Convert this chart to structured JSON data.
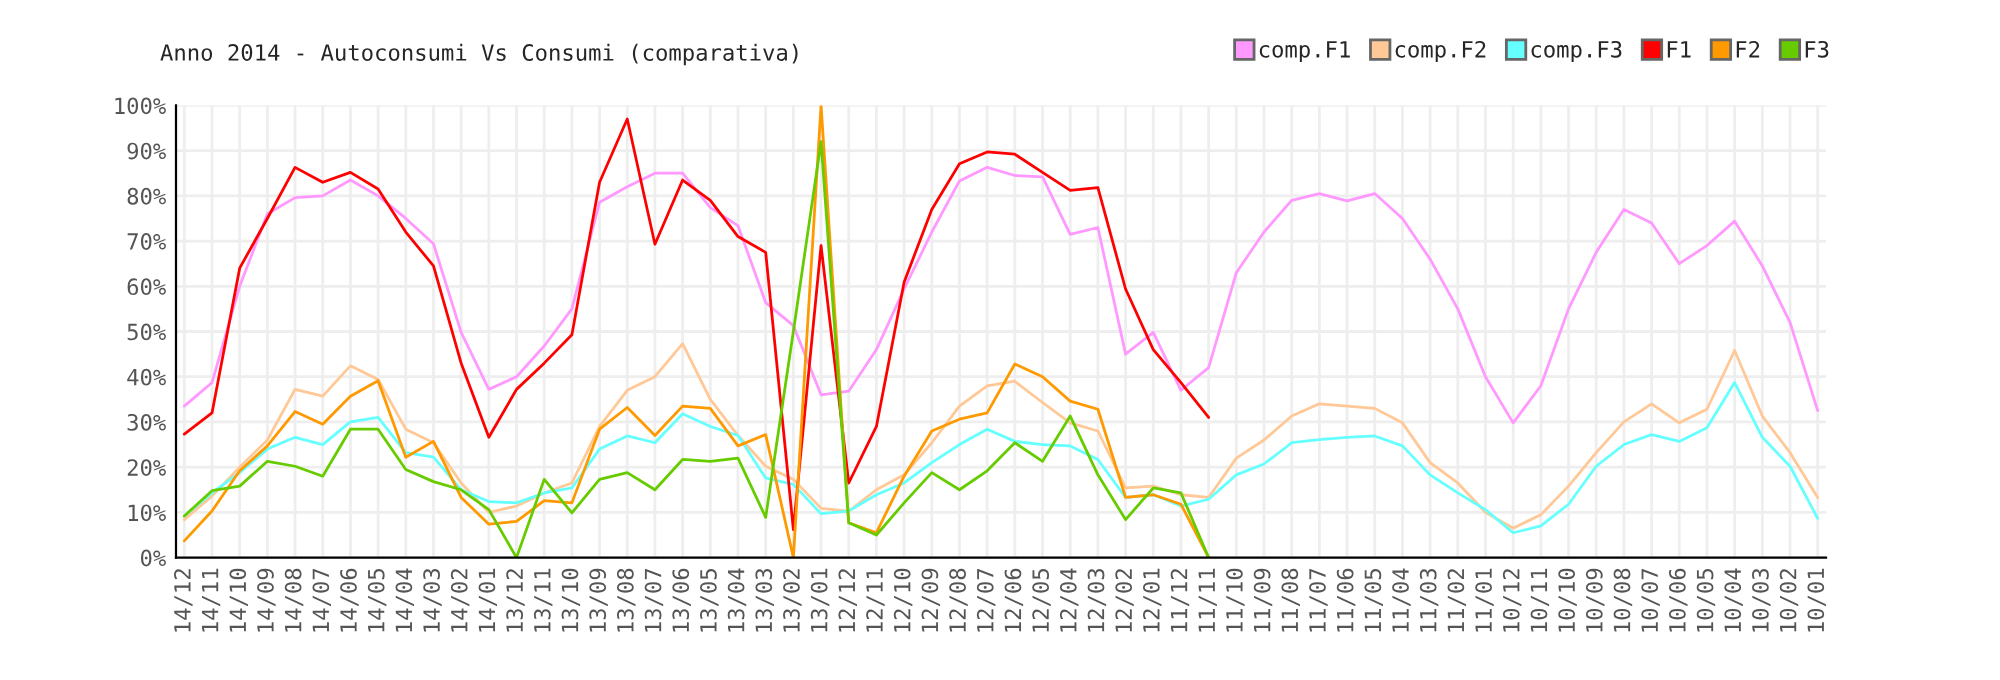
{
  "chart_data": {
    "type": "line",
    "title": "Anno 2014 - Autoconsumi Vs Consumi (comparativa)",
    "categories": [
      "14/12",
      "14/11",
      "14/10",
      "14/09",
      "14/08",
      "14/07",
      "14/06",
      "14/05",
      "14/04",
      "14/03",
      "14/02",
      "14/01",
      "13/12",
      "13/11",
      "13/10",
      "13/09",
      "13/08",
      "13/07",
      "13/06",
      "13/05",
      "13/04",
      "13/03",
      "13/02",
      "13/01",
      "12/12",
      "12/11",
      "12/10",
      "12/09",
      "12/08",
      "12/07",
      "12/06",
      "12/05",
      "12/04",
      "12/03",
      "12/02",
      "12/01",
      "11/12",
      "11/11",
      "11/10",
      "11/09",
      "11/08",
      "11/07",
      "11/06",
      "11/05",
      "11/04",
      "11/03",
      "11/02",
      "11/01",
      "10/12",
      "10/11",
      "10/10",
      "10/09",
      "10/08",
      "10/07",
      "10/06",
      "10/05",
      "10/04",
      "10/03",
      "10/02",
      "10/01"
    ],
    "series": [
      {
        "name": "comp.F1",
        "color": "#ff99ff",
        "values": [
          33.5,
          38.7,
          60,
          76,
          79.6,
          80,
          83.5,
          80,
          75,
          69.4,
          49.8,
          37.2,
          40,
          46.8,
          55,
          78.6,
          82,
          85,
          85,
          77.4,
          73.4,
          56.4,
          51.3,
          36,
          36.8,
          46,
          59.4,
          72,
          83.3,
          86.3,
          84.5,
          84.2,
          71.5,
          73,
          45,
          49.8,
          37,
          42,
          63,
          72,
          79,
          80.5,
          78.9,
          80.5,
          75,
          66,
          55,
          40,
          29.8,
          38,
          55,
          67.5,
          77,
          74,
          65,
          69,
          74.4,
          64.5,
          52,
          32.5
        ]
      },
      {
        "name": "comp.F2",
        "color": "#ffc896",
        "values": [
          8.4,
          13.6,
          20,
          26,
          37.2,
          35.7,
          42.4,
          39.4,
          28.4,
          25.4,
          16.5,
          10,
          11.4,
          14.3,
          16.5,
          29,
          37,
          40,
          47.3,
          35,
          27,
          20.2,
          17.3,
          10.9,
          10.3,
          15,
          18.3,
          25.4,
          33.5,
          38,
          39,
          34.3,
          29.8,
          28,
          15.4,
          15.8,
          13.9,
          13.3,
          22,
          26,
          31.3,
          34,
          33.5,
          33,
          29.8,
          21,
          16.5,
          10,
          6.5,
          9.5,
          15.8,
          23.2,
          30,
          34,
          29.8,
          32.8,
          45.8,
          31.3,
          23.2,
          13.3
        ]
      },
      {
        "name": "comp.F3",
        "color": "#66ffff",
        "values": [
          9.2,
          14.3,
          18.8,
          24,
          26.6,
          25,
          30,
          31,
          23.2,
          22.2,
          15,
          12.4,
          12.1,
          14.3,
          15.4,
          24,
          26.9,
          25.4,
          31.8,
          29,
          27,
          17.6,
          16.2,
          9.7,
          10.3,
          13.9,
          16.5,
          21,
          25,
          28.4,
          25.7,
          25,
          24.7,
          21.7,
          13.3,
          13.9,
          11.4,
          12.9,
          18.3,
          20.7,
          25.4,
          26.1,
          26.6,
          26.9,
          24.7,
          18.3,
          14.3,
          10.6,
          5.5,
          7,
          11.8,
          20.2,
          25,
          27.2,
          25.7,
          28.7,
          38.7,
          26.6,
          20.2,
          8.7
        ]
      },
      {
        "name": "F1",
        "color": "#ff0000",
        "values": [
          27.3,
          32,
          64,
          75,
          86.3,
          83,
          85.2,
          81.5,
          72,
          64.5,
          43,
          26.6,
          37.2,
          43,
          49.3,
          83,
          97,
          69.3,
          83.5,
          79,
          71,
          67.5,
          6.2,
          69,
          16.5,
          29,
          60.9,
          77,
          87.1,
          89.7,
          89.2,
          85.2,
          81.2,
          81.8,
          59.4,
          46,
          38.7,
          31,
          null,
          null,
          null,
          null,
          null,
          null,
          null,
          null,
          null,
          null,
          null,
          null,
          null,
          null,
          null,
          null,
          null,
          null,
          null,
          null,
          null,
          null
        ]
      },
      {
        "name": "F2",
        "color": "#ff9900",
        "values": [
          3.7,
          10.3,
          19.2,
          24.7,
          32.3,
          29.5,
          35.7,
          39.1,
          22.2,
          25.7,
          13.3,
          7.4,
          8,
          12.6,
          12.1,
          28.4,
          33.2,
          27,
          33.5,
          33,
          24.7,
          27.2,
          0,
          100,
          7.7,
          5.5,
          18,
          28,
          30.6,
          32,
          42.8,
          40,
          34.6,
          32.8,
          13.3,
          13.9,
          11.8,
          0,
          null,
          null,
          null,
          null,
          null,
          null,
          null,
          null,
          null,
          null,
          null,
          null,
          null,
          null,
          null,
          null,
          null,
          null,
          null,
          null,
          null,
          null
        ]
      },
      {
        "name": "F3",
        "color": "#66cc00",
        "values": [
          9.2,
          14.8,
          15.8,
          21.3,
          20.2,
          18,
          28.4,
          28.4,
          19.5,
          16.8,
          15,
          10.6,
          0,
          17.3,
          9.9,
          17.3,
          18.8,
          15,
          21.7,
          21.3,
          22,
          8.9,
          50,
          92,
          7.7,
          5,
          12.1,
          18.8,
          15,
          19.2,
          25.4,
          21.3,
          31.3,
          18.3,
          8.4,
          15.4,
          14.3,
          0,
          null,
          null,
          null,
          null,
          null,
          null,
          null,
          null,
          null,
          null,
          null,
          null,
          null,
          null,
          null,
          null,
          null,
          null,
          null,
          null,
          null,
          null
        ]
      }
    ],
    "ylim": [
      0,
      100
    ],
    "yticks": [
      {
        "value": 0,
        "label": "0%"
      },
      {
        "value": 10,
        "label": "10%"
      },
      {
        "value": 20,
        "label": "20%"
      },
      {
        "value": 30,
        "label": "30%"
      },
      {
        "value": 40,
        "label": "40%"
      },
      {
        "value": 50,
        "label": "50%"
      },
      {
        "value": 60,
        "label": "60%"
      },
      {
        "value": 70,
        "label": "70%"
      },
      {
        "value": 80,
        "label": "80%"
      },
      {
        "value": 90,
        "label": "90%"
      },
      {
        "value": 100,
        "label": "100%"
      }
    ],
    "grid": true,
    "legend": "top right"
  }
}
